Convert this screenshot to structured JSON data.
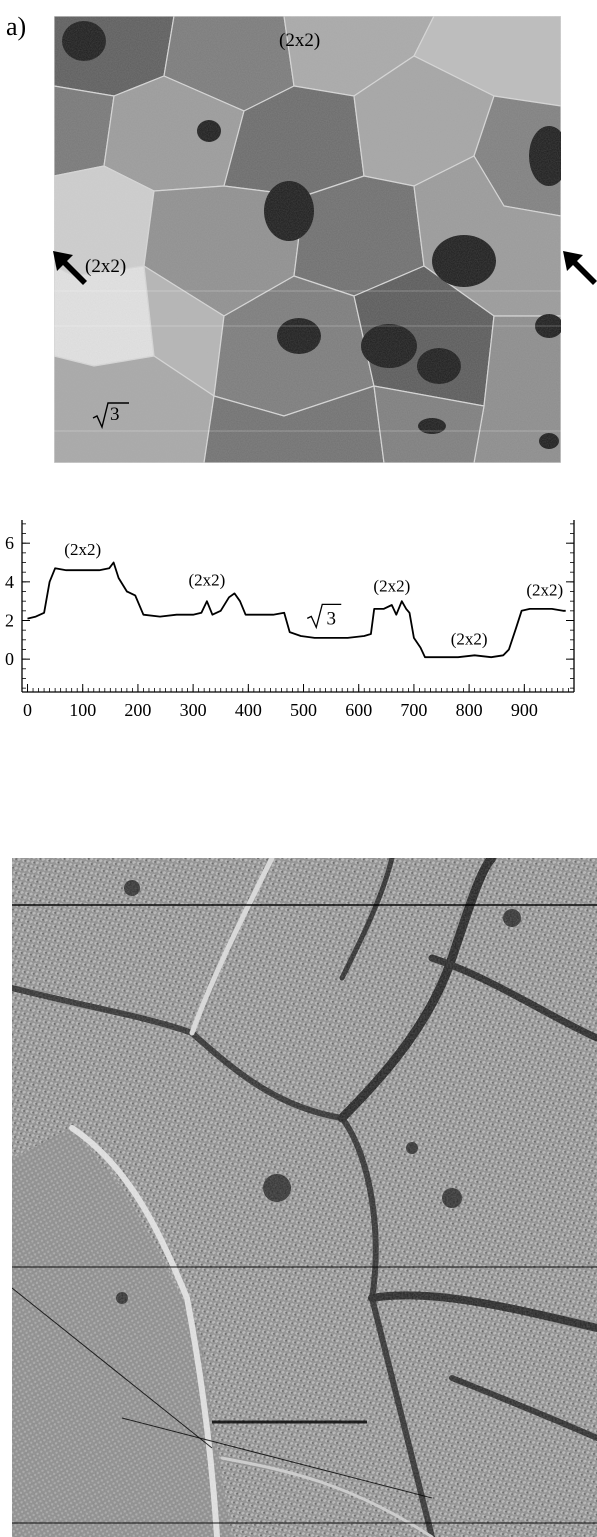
{
  "panel_a": {
    "label": "a)",
    "labels": {
      "top_2x2": "(2x2)",
      "left_2x2": "(2x2)",
      "sqrt3": "3"
    }
  },
  "icons": {
    "left_arrow": "arrow-up-left-icon",
    "right_arrow": "arrow-up-left-icon",
    "sqrt": "sqrt-icon"
  },
  "chart_data": {
    "type": "line",
    "title": "",
    "xlabel": "",
    "ylabel": "",
    "xlim": [
      -10,
      990
    ],
    "ylim": [
      -1.7,
      7.2
    ],
    "x_ticks": [
      0,
      100,
      200,
      300,
      400,
      500,
      600,
      700,
      800,
      900
    ],
    "y_ticks": [
      0,
      2,
      4,
      6
    ],
    "series": [
      {
        "points": [
          [
            0,
            2.1
          ],
          [
            15,
            2.2
          ],
          [
            30,
            2.4
          ],
          [
            40,
            4.0
          ],
          [
            50,
            4.7
          ],
          [
            70,
            4.6
          ],
          [
            90,
            4.6
          ],
          [
            110,
            4.6
          ],
          [
            130,
            4.6
          ],
          [
            148,
            4.7
          ],
          [
            156,
            5.0
          ],
          [
            165,
            4.2
          ],
          [
            180,
            3.5
          ],
          [
            195,
            3.3
          ],
          [
            210,
            2.3
          ],
          [
            240,
            2.2
          ],
          [
            270,
            2.3
          ],
          [
            300,
            2.3
          ],
          [
            315,
            2.4
          ],
          [
            325,
            3.0
          ],
          [
            335,
            2.3
          ],
          [
            350,
            2.5
          ],
          [
            365,
            3.2
          ],
          [
            375,
            3.4
          ],
          [
            385,
            3.0
          ],
          [
            395,
            2.3
          ],
          [
            420,
            2.3
          ],
          [
            445,
            2.3
          ],
          [
            465,
            2.4
          ],
          [
            475,
            1.4
          ],
          [
            495,
            1.2
          ],
          [
            520,
            1.1
          ],
          [
            550,
            1.1
          ],
          [
            580,
            1.1
          ],
          [
            610,
            1.2
          ],
          [
            622,
            1.3
          ],
          [
            628,
            2.6
          ],
          [
            645,
            2.6
          ],
          [
            660,
            2.8
          ],
          [
            668,
            2.3
          ],
          [
            678,
            3.0
          ],
          [
            686,
            2.6
          ],
          [
            692,
            2.4
          ],
          [
            700,
            1.1
          ],
          [
            712,
            0.6
          ],
          [
            720,
            0.1
          ],
          [
            750,
            0.1
          ],
          [
            780,
            0.1
          ],
          [
            810,
            0.2
          ],
          [
            840,
            0.1
          ],
          [
            862,
            0.2
          ],
          [
            872,
            0.5
          ],
          [
            885,
            1.6
          ],
          [
            895,
            2.5
          ],
          [
            910,
            2.6
          ],
          [
            930,
            2.6
          ],
          [
            950,
            2.6
          ],
          [
            970,
            2.5
          ],
          [
            975,
            2.5
          ]
        ]
      }
    ],
    "annotations": [
      {
        "text": "(2x2)",
        "x": 100,
        "y": 5.4
      },
      {
        "text": "(2x2)",
        "x": 325,
        "y": 3.8
      },
      {
        "text": "3",
        "x": 543,
        "y": 1.8,
        "sqrt": true
      },
      {
        "text": "(2x2)",
        "x": 660,
        "y": 3.5
      },
      {
        "text": "(2x2)",
        "x": 800,
        "y": 0.75
      },
      {
        "text": "(2x2)",
        "x": 937,
        "y": 3.3
      }
    ]
  }
}
